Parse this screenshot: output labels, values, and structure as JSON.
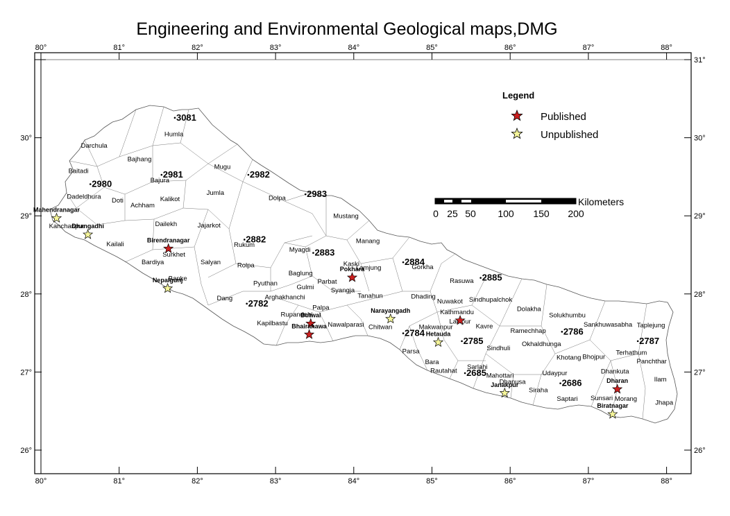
{
  "title": "Engineering and Environmental Geological maps,DMG",
  "axes": {
    "lon_ticks": [
      {
        "value": 80,
        "label": "80°"
      },
      {
        "value": 81,
        "label": "81°"
      },
      {
        "value": 82,
        "label": "82°"
      },
      {
        "value": 83,
        "label": "83°"
      },
      {
        "value": 84,
        "label": "84°"
      },
      {
        "value": 85,
        "label": "85°"
      },
      {
        "value": 86,
        "label": "86°"
      },
      {
        "value": 87,
        "label": "87°"
      },
      {
        "value": 88,
        "label": "88°"
      }
    ],
    "lat_ticks": [
      {
        "value": 31,
        "label": "31°"
      },
      {
        "value": 30,
        "label": "30°"
      },
      {
        "value": 29,
        "label": "29°"
      },
      {
        "value": 28,
        "label": "28°"
      },
      {
        "value": 27,
        "label": "27°"
      },
      {
        "value": 26,
        "label": "26°"
      }
    ]
  },
  "legend": {
    "title": "Legend",
    "items": [
      {
        "label": "Published",
        "color": "#cc1f1f"
      },
      {
        "label": "Unpublished",
        "color": "#f5f59a"
      }
    ]
  },
  "scale_bar": {
    "labels": [
      "0",
      "25",
      "50",
      "100",
      "150",
      "200"
    ],
    "unit": "Kilometers"
  },
  "map_sheets": [
    {
      "id": "3081",
      "lon": 81.73,
      "lat": 30.22
    },
    {
      "id": "2980",
      "lon": 80.65,
      "lat": 29.37
    },
    {
      "id": "2981",
      "lon": 81.56,
      "lat": 29.49
    },
    {
      "id": "2982",
      "lon": 82.67,
      "lat": 29.49
    },
    {
      "id": "2983",
      "lon": 83.4,
      "lat": 29.24
    },
    {
      "id": "2882",
      "lon": 82.62,
      "lat": 28.66
    },
    {
      "id": "2883",
      "lon": 83.5,
      "lat": 28.49
    },
    {
      "id": "2884",
      "lon": 84.65,
      "lat": 28.37
    },
    {
      "id": "2885",
      "lon": 85.64,
      "lat": 28.17
    },
    {
      "id": "2782",
      "lon": 82.65,
      "lat": 27.84
    },
    {
      "id": "2784",
      "lon": 84.65,
      "lat": 27.46
    },
    {
      "id": "2785",
      "lon": 85.4,
      "lat": 27.36
    },
    {
      "id": "2786",
      "lon": 86.68,
      "lat": 27.48
    },
    {
      "id": "2787",
      "lon": 87.65,
      "lat": 27.36
    },
    {
      "id": "2685",
      "lon": 85.44,
      "lat": 26.95
    },
    {
      "id": "2686",
      "lon": 86.66,
      "lat": 26.82
    }
  ],
  "cities": [
    {
      "name": "Mahendranagar",
      "lon": 80.2,
      "lat": 28.97,
      "status": "unpublished"
    },
    {
      "name": "Dhangadhi",
      "lon": 80.6,
      "lat": 28.76,
      "status": "unpublished"
    },
    {
      "name": "Birendranagar",
      "lon": 81.63,
      "lat": 28.58,
      "status": "published"
    },
    {
      "name": "Nepalgunj",
      "lon": 81.62,
      "lat": 28.07,
      "status": "unpublished"
    },
    {
      "name": "Butwal",
      "lon": 83.45,
      "lat": 27.62,
      "status": "published"
    },
    {
      "name": "Bhairahawa",
      "lon": 83.43,
      "lat": 27.48,
      "status": "published"
    },
    {
      "name": "Pokhara",
      "lon": 83.98,
      "lat": 28.21,
      "status": "published"
    },
    {
      "name": "Narayangadh",
      "lon": 84.47,
      "lat": 27.68,
      "status": "unpublished"
    },
    {
      "name": "Hetauda",
      "lon": 85.08,
      "lat": 27.38,
      "status": "unpublished"
    },
    {
      "name": "Janakpur",
      "lon": 85.93,
      "lat": 26.73,
      "status": "unpublished"
    },
    {
      "name": "Dharan",
      "lon": 87.37,
      "lat": 26.78,
      "status": "published"
    },
    {
      "name": "Biratnagar",
      "lon": 87.31,
      "lat": 26.46,
      "status": "unpublished"
    }
  ],
  "extra_marker": {
    "lon": 85.36,
    "lat": 27.66,
    "status": "published"
  },
  "districts": [
    {
      "name": "Humla",
      "lon": 81.7,
      "lat": 30.02
    },
    {
      "name": "Darchula",
      "lon": 80.68,
      "lat": 29.87
    },
    {
      "name": "Bajhang",
      "lon": 81.26,
      "lat": 29.7
    },
    {
      "name": "Baitadi",
      "lon": 80.48,
      "lat": 29.55
    },
    {
      "name": "Mugu",
      "lon": 82.32,
      "lat": 29.6
    },
    {
      "name": "Bajura",
      "lon": 81.52,
      "lat": 29.43
    },
    {
      "name": "Dadeldhura",
      "lon": 80.55,
      "lat": 29.22
    },
    {
      "name": "Doti",
      "lon": 80.98,
      "lat": 29.17
    },
    {
      "name": "Kalikot",
      "lon": 81.65,
      "lat": 29.19
    },
    {
      "name": "Jumla",
      "lon": 82.23,
      "lat": 29.27
    },
    {
      "name": "Dolpa",
      "lon": 83.02,
      "lat": 29.2
    },
    {
      "name": "Achham",
      "lon": 81.3,
      "lat": 29.11
    },
    {
      "name": "Mustang",
      "lon": 83.9,
      "lat": 28.97
    },
    {
      "name": "Kanchanpur",
      "lon": 80.33,
      "lat": 28.84
    },
    {
      "name": "Dailekh",
      "lon": 81.6,
      "lat": 28.87
    },
    {
      "name": "Jajarkot",
      "lon": 82.15,
      "lat": 28.85
    },
    {
      "name": "Rukum",
      "lon": 82.6,
      "lat": 28.6
    },
    {
      "name": "Kailali",
      "lon": 80.95,
      "lat": 28.61
    },
    {
      "name": "Manang",
      "lon": 84.18,
      "lat": 28.65
    },
    {
      "name": "Myagdi",
      "lon": 83.31,
      "lat": 28.54
    },
    {
      "name": "Surkhet",
      "lon": 81.7,
      "lat": 28.48
    },
    {
      "name": "Salyan",
      "lon": 82.17,
      "lat": 28.38
    },
    {
      "name": "Bardiya",
      "lon": 81.43,
      "lat": 28.38
    },
    {
      "name": "Rolpa",
      "lon": 82.62,
      "lat": 28.34
    },
    {
      "name": "Kaski",
      "lon": 83.97,
      "lat": 28.36
    },
    {
      "name": "Lamjung",
      "lon": 84.19,
      "lat": 28.31
    },
    {
      "name": "Gorkha",
      "lon": 84.88,
      "lat": 28.32
    },
    {
      "name": "Baglung",
      "lon": 83.32,
      "lat": 28.24
    },
    {
      "name": "Banke",
      "lon": 81.75,
      "lat": 28.17
    },
    {
      "name": "Parbat",
      "lon": 83.66,
      "lat": 28.13
    },
    {
      "name": "Rasuwa",
      "lon": 85.38,
      "lat": 28.14
    },
    {
      "name": "Pyuthan",
      "lon": 82.87,
      "lat": 28.11
    },
    {
      "name": "Gulmi",
      "lon": 83.38,
      "lat": 28.06
    },
    {
      "name": "Syangja",
      "lon": 83.86,
      "lat": 28.02
    },
    {
      "name": "Dang",
      "lon": 82.35,
      "lat": 27.92
    },
    {
      "name": "Arghakhanchi",
      "lon": 83.12,
      "lat": 27.93
    },
    {
      "name": "Tanahun",
      "lon": 84.21,
      "lat": 27.95
    },
    {
      "name": "Dhading",
      "lon": 84.89,
      "lat": 27.94
    },
    {
      "name": "Nuwakot",
      "lon": 85.23,
      "lat": 27.88
    },
    {
      "name": "Sindhupalchok",
      "lon": 85.75,
      "lat": 27.9
    },
    {
      "name": "Palpa",
      "lon": 83.58,
      "lat": 27.8
    },
    {
      "name": "Dolakha",
      "lon": 86.24,
      "lat": 27.78
    },
    {
      "name": "Kathmandu",
      "lon": 85.32,
      "lat": 27.74
    },
    {
      "name": "Solukhumbu",
      "lon": 86.73,
      "lat": 27.7
    },
    {
      "name": "Rupandehi",
      "lon": 83.27,
      "lat": 27.71
    },
    {
      "name": "Lalitpur",
      "lon": 85.36,
      "lat": 27.62
    },
    {
      "name": "Kapilbastu",
      "lon": 82.96,
      "lat": 27.6
    },
    {
      "name": "Nawalparasi",
      "lon": 83.9,
      "lat": 27.58
    },
    {
      "name": "Sankhuwasabha",
      "lon": 87.25,
      "lat": 27.58
    },
    {
      "name": "Taplejung",
      "lon": 87.8,
      "lat": 27.57
    },
    {
      "name": "Chitwan",
      "lon": 84.34,
      "lat": 27.55
    },
    {
      "name": "Makwanpur",
      "lon": 85.05,
      "lat": 27.55
    },
    {
      "name": "Kavre",
      "lon": 85.67,
      "lat": 27.56
    },
    {
      "name": "Ramechhap",
      "lon": 86.23,
      "lat": 27.5
    },
    {
      "name": "Okhaldhunga",
      "lon": 86.4,
      "lat": 27.33
    },
    {
      "name": "Sindhuli",
      "lon": 85.85,
      "lat": 27.28
    },
    {
      "name": "Parsa",
      "lon": 84.73,
      "lat": 27.24
    },
    {
      "name": "Terhathum",
      "lon": 87.55,
      "lat": 27.22
    },
    {
      "name": "Khotang",
      "lon": 86.75,
      "lat": 27.16
    },
    {
      "name": "Bhojpur",
      "lon": 87.07,
      "lat": 27.17
    },
    {
      "name": "Panchthar",
      "lon": 87.81,
      "lat": 27.11
    },
    {
      "name": "Bara",
      "lon": 85.0,
      "lat": 27.1
    },
    {
      "name": "Sarlahi",
      "lon": 85.58,
      "lat": 27.04
    },
    {
      "name": "Rautahat",
      "lon": 85.15,
      "lat": 26.99
    },
    {
      "name": "Dhankuta",
      "lon": 87.34,
      "lat": 26.98
    },
    {
      "name": "Udaypur",
      "lon": 86.57,
      "lat": 26.96
    },
    {
      "name": "Mahottari",
      "lon": 85.87,
      "lat": 26.93
    },
    {
      "name": "Ilam",
      "lon": 87.92,
      "lat": 26.88
    },
    {
      "name": "Dhanusa",
      "lon": 86.03,
      "lat": 26.85
    },
    {
      "name": "Siraha",
      "lon": 86.36,
      "lat": 26.74
    },
    {
      "name": "Sunsari",
      "lon": 87.17,
      "lat": 26.64
    },
    {
      "name": "Saptari",
      "lon": 86.73,
      "lat": 26.63
    },
    {
      "name": "Morang",
      "lon": 87.48,
      "lat": 26.63
    },
    {
      "name": "Jhapa",
      "lon": 87.97,
      "lat": 26.58
    }
  ]
}
